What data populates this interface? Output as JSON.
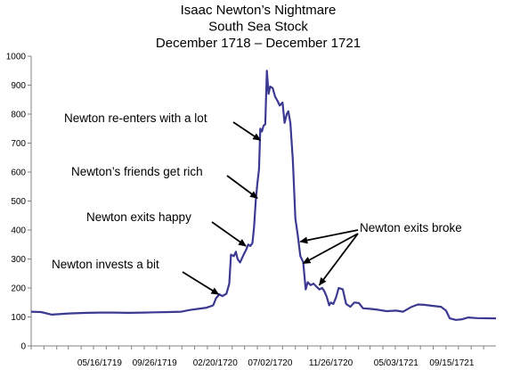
{
  "chart_data": {
    "type": "line",
    "title": [
      "Isaac Newton’s Nightmare",
      "South Sea Stock",
      "December 1718 – December 1721"
    ],
    "xlabel": "",
    "ylabel": "",
    "ylim": [
      0,
      1000
    ],
    "yticks": [
      0,
      100,
      200,
      300,
      400,
      500,
      600,
      700,
      800,
      900,
      1000
    ],
    "xlim": [
      "12/01/1718",
      "12/31/1721"
    ],
    "xtick_dates": [
      "05/16/1719",
      "09/26/1719",
      "02/20/1720",
      "07/02/1720",
      "11/26/1720",
      "05/03/1721",
      "09/15/1721"
    ],
    "xtick_labels": [
      "05/16/1719",
      "09/26/1719",
      "02/20/1720",
      "07/02/1720",
      "11/26/1720",
      "05/03/1721",
      "09/15/1721"
    ],
    "grid": false,
    "legend": "none",
    "series": [
      {
        "color": "#3b3991",
        "points": [
          [
            "12/01/1718",
            118
          ],
          [
            "12/25/1718",
            117
          ],
          [
            "01/20/1719",
            108
          ],
          [
            "03/01/1719",
            112
          ],
          [
            "04/15/1719",
            114
          ],
          [
            "05/16/1719",
            115
          ],
          [
            "06/20/1719",
            115
          ],
          [
            "07/25/1719",
            114
          ],
          [
            "08/30/1719",
            115
          ],
          [
            "09/26/1719",
            116
          ],
          [
            "10/30/1719",
            117
          ],
          [
            "11/30/1719",
            118
          ],
          [
            "12/20/1719",
            124
          ],
          [
            "01/10/1720",
            128
          ],
          [
            "01/30/1720",
            132
          ],
          [
            "02/15/1720",
            140
          ],
          [
            "02/22/1720",
            165
          ],
          [
            "03/01/1720",
            178
          ],
          [
            "03/08/1720",
            172
          ],
          [
            "03/18/1720",
            180
          ],
          [
            "03/25/1720",
            215
          ],
          [
            "03/29/1720",
            315
          ],
          [
            "04/05/1720",
            310
          ],
          [
            "04/10/1720",
            325
          ],
          [
            "04/14/1720",
            300
          ],
          [
            "04/20/1720",
            288
          ],
          [
            "04/27/1720",
            310
          ],
          [
            "05/04/1720",
            330
          ],
          [
            "05/10/1720",
            350
          ],
          [
            "05/15/1720",
            345
          ],
          [
            "05/20/1720",
            355
          ],
          [
            "05/24/1720",
            410
          ],
          [
            "05/28/1720",
            500
          ],
          [
            "06/01/1720",
            560
          ],
          [
            "06/05/1720",
            610
          ],
          [
            "06/08/1720",
            750
          ],
          [
            "06/12/1720",
            740
          ],
          [
            "06/16/1720",
            760
          ],
          [
            "06/20/1720",
            765
          ],
          [
            "06/24/1720",
            950
          ],
          [
            "06/28/1720",
            870
          ],
          [
            "07/02/1720",
            895
          ],
          [
            "07/08/1720",
            890
          ],
          [
            "07/14/1720",
            860
          ],
          [
            "07/20/1720",
            845
          ],
          [
            "07/25/1720",
            830
          ],
          [
            "08/01/1720",
            840
          ],
          [
            "08/06/1720",
            770
          ],
          [
            "08/11/1720",
            800
          ],
          [
            "08/15/1720",
            810
          ],
          [
            "08/20/1720",
            770
          ],
          [
            "08/26/1720",
            640
          ],
          [
            "09/01/1720",
            440
          ],
          [
            "09/07/1720",
            380
          ],
          [
            "09/13/1720",
            310
          ],
          [
            "09/20/1720",
            290
          ],
          [
            "09/26/1720",
            195
          ],
          [
            "10/01/1720",
            220
          ],
          [
            "10/08/1720",
            210
          ],
          [
            "10/15/1720",
            215
          ],
          [
            "10/22/1720",
            205
          ],
          [
            "10/29/1720",
            195
          ],
          [
            "11/05/1720",
            200
          ],
          [
            "11/10/1720",
            190
          ],
          [
            "11/16/1720",
            170
          ],
          [
            "11/22/1720",
            140
          ],
          [
            "11/26/1720",
            150
          ],
          [
            "12/02/1720",
            145
          ],
          [
            "12/08/1720",
            165
          ],
          [
            "12/15/1720",
            200
          ],
          [
            "12/25/1720",
            195
          ],
          [
            "01/02/1721",
            145
          ],
          [
            "01/12/1721",
            135
          ],
          [
            "01/22/1721",
            150
          ],
          [
            "02/02/1721",
            148
          ],
          [
            "02/12/1721",
            130
          ],
          [
            "03/01/1721",
            128
          ],
          [
            "03/20/1721",
            125
          ],
          [
            "04/10/1721",
            120
          ],
          [
            "05/03/1721",
            122
          ],
          [
            "05/20/1721",
            118
          ],
          [
            "06/10/1721",
            135
          ],
          [
            "06/25/1721",
            143
          ],
          [
            "07/10/1721",
            142
          ],
          [
            "08/01/1721",
            138
          ],
          [
            "08/20/1721",
            135
          ],
          [
            "09/01/1721",
            122
          ],
          [
            "09/10/1721",
            95
          ],
          [
            "09/25/1721",
            90
          ],
          [
            "10/10/1721",
            92
          ],
          [
            "10/25/1721",
            98
          ],
          [
            "11/15/1721",
            96
          ],
          [
            "12/31/1721",
            95
          ]
        ]
      }
    ],
    "annotations": [
      {
        "text": "Newton re-enters with a lot",
        "target": [
          "06/08/1720",
          710
        ]
      },
      {
        "text": "Newton’s friends get rich",
        "target": [
          "06/01/1720",
          510
        ]
      },
      {
        "text": "Newton exits happy",
        "target": [
          "05/04/1720",
          345
        ]
      },
      {
        "text": "Newton invests a bit",
        "target": [
          "02/28/1720",
          178
        ]
      },
      {
        "text": "Newton exits broke",
        "targets": [
          [
            "09/13/1720",
            360
          ],
          [
            "09/20/1720",
            285
          ],
          [
            "10/29/1720",
            210
          ]
        ]
      }
    ]
  }
}
